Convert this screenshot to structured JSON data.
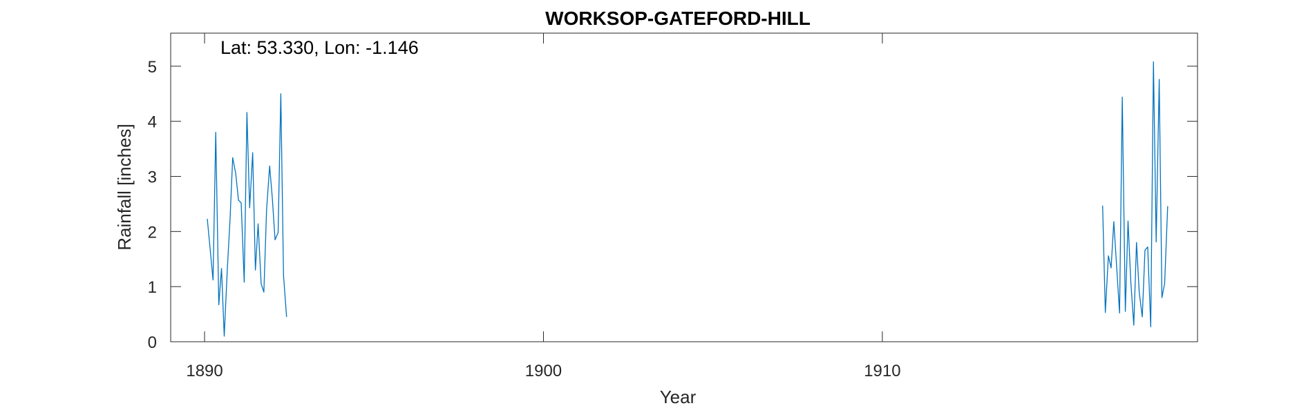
{
  "chart_data": {
    "type": "line",
    "title": "WORKSOP-GATEFORD-HILL",
    "annotation": "Lat: 53.330, Lon: -1.146",
    "xlabel": "Year",
    "ylabel": "Rainfall [inches]",
    "xlim": [
      1889,
      1919.3
    ],
    "ylim": [
      0,
      5.6
    ],
    "xticks": [
      1890,
      1900,
      1910
    ],
    "yticks": [
      0,
      1,
      2,
      3,
      4,
      5
    ],
    "grid": false,
    "line_color": "#0072bd",
    "series": [
      {
        "x": [
          1890.08,
          1890.17,
          1890.25,
          1890.33,
          1890.42,
          1890.5,
          1890.58,
          1890.67,
          1890.75,
          1890.83,
          1890.92,
          1891.0,
          1891.08,
          1891.17,
          1891.25,
          1891.33,
          1891.42,
          1891.5,
          1891.58,
          1891.67,
          1891.75,
          1891.83,
          1891.92,
          1892.0,
          1892.08,
          1892.17,
          1892.25,
          1892.33,
          1892.42,
          1892.5
        ],
        "values": [
          2.23,
          1.65,
          1.12,
          3.8,
          0.67,
          1.33,
          0.1,
          1.3,
          2.2,
          3.34,
          3.05,
          2.57,
          2.52,
          1.08,
          4.16,
          2.43,
          3.43,
          1.3,
          2.14,
          1.05,
          0.9,
          2.4,
          3.19,
          2.6,
          1.85,
          1.98,
          4.5,
          1.2,
          0.45,
          null
        ]
      },
      {
        "x": [
          1916.5,
          1916.58,
          1916.67,
          1916.75,
          1916.83,
          1916.92,
          1917.0,
          1917.08,
          1917.17,
          1917.25,
          1917.33,
          1917.42,
          1917.5,
          1917.58,
          1917.67,
          1917.75,
          1917.83,
          1917.92,
          1918.0,
          1918.08,
          1918.17,
          1918.25,
          1918.33,
          1918.42,
          1918.5
        ],
        "values": [
          2.47,
          0.53,
          1.56,
          1.34,
          2.18,
          1.3,
          0.52,
          4.44,
          0.55,
          2.19,
          1.1,
          0.3,
          1.8,
          0.9,
          0.45,
          1.66,
          1.72,
          0.27,
          5.08,
          1.81,
          4.76,
          0.8,
          1.06,
          2.46,
          null
        ]
      }
    ]
  }
}
